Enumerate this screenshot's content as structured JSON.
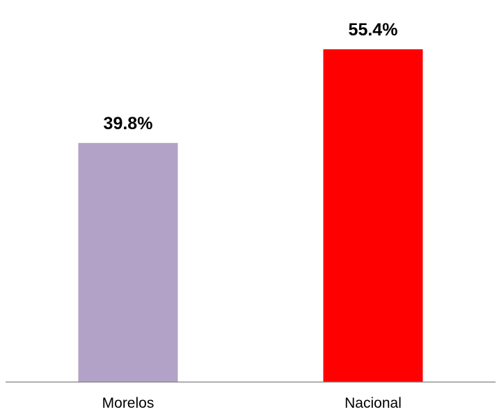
{
  "chart_data": {
    "type": "bar",
    "categories": [
      "Morelos",
      "Nacional"
    ],
    "values": [
      39.8,
      55.4
    ],
    "data_labels": [
      "39.8%",
      "55.4%"
    ],
    "colors": [
      "#b3a2c7",
      "#ff0000"
    ],
    "axis_color": "#7f7f7f",
    "title": "",
    "xlabel": "",
    "ylabel": "",
    "ylim": [
      0,
      63.6
    ],
    "grid": false,
    "legend": "none"
  }
}
